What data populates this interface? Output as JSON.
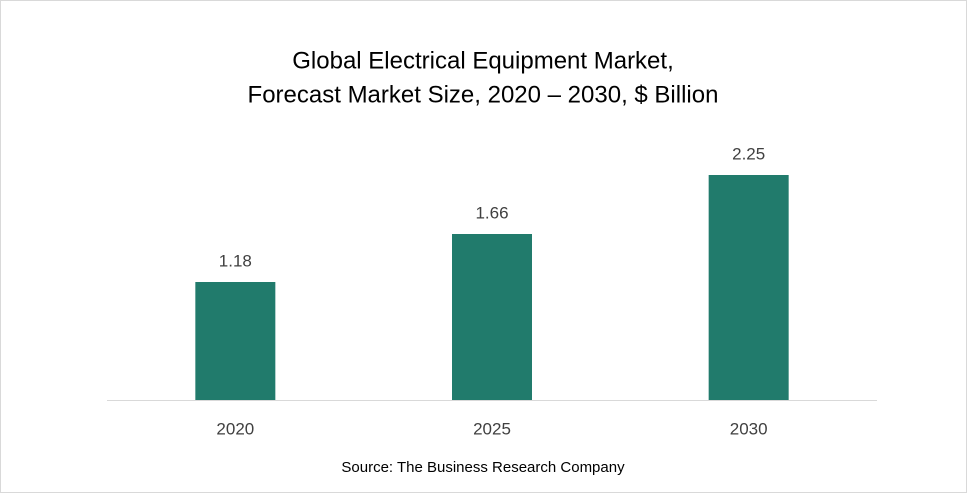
{
  "chart_data": {
    "type": "bar",
    "title": "Global Electrical Equipment Market,",
    "subtitle": "Forecast Market Size, 2020 – 2030, $ Billion",
    "categories": [
      "2020",
      "2025",
      "2030"
    ],
    "values": [
      1.18,
      1.66,
      2.25
    ],
    "color": "#217b6c",
    "source": "Source: The Business Research Company"
  }
}
